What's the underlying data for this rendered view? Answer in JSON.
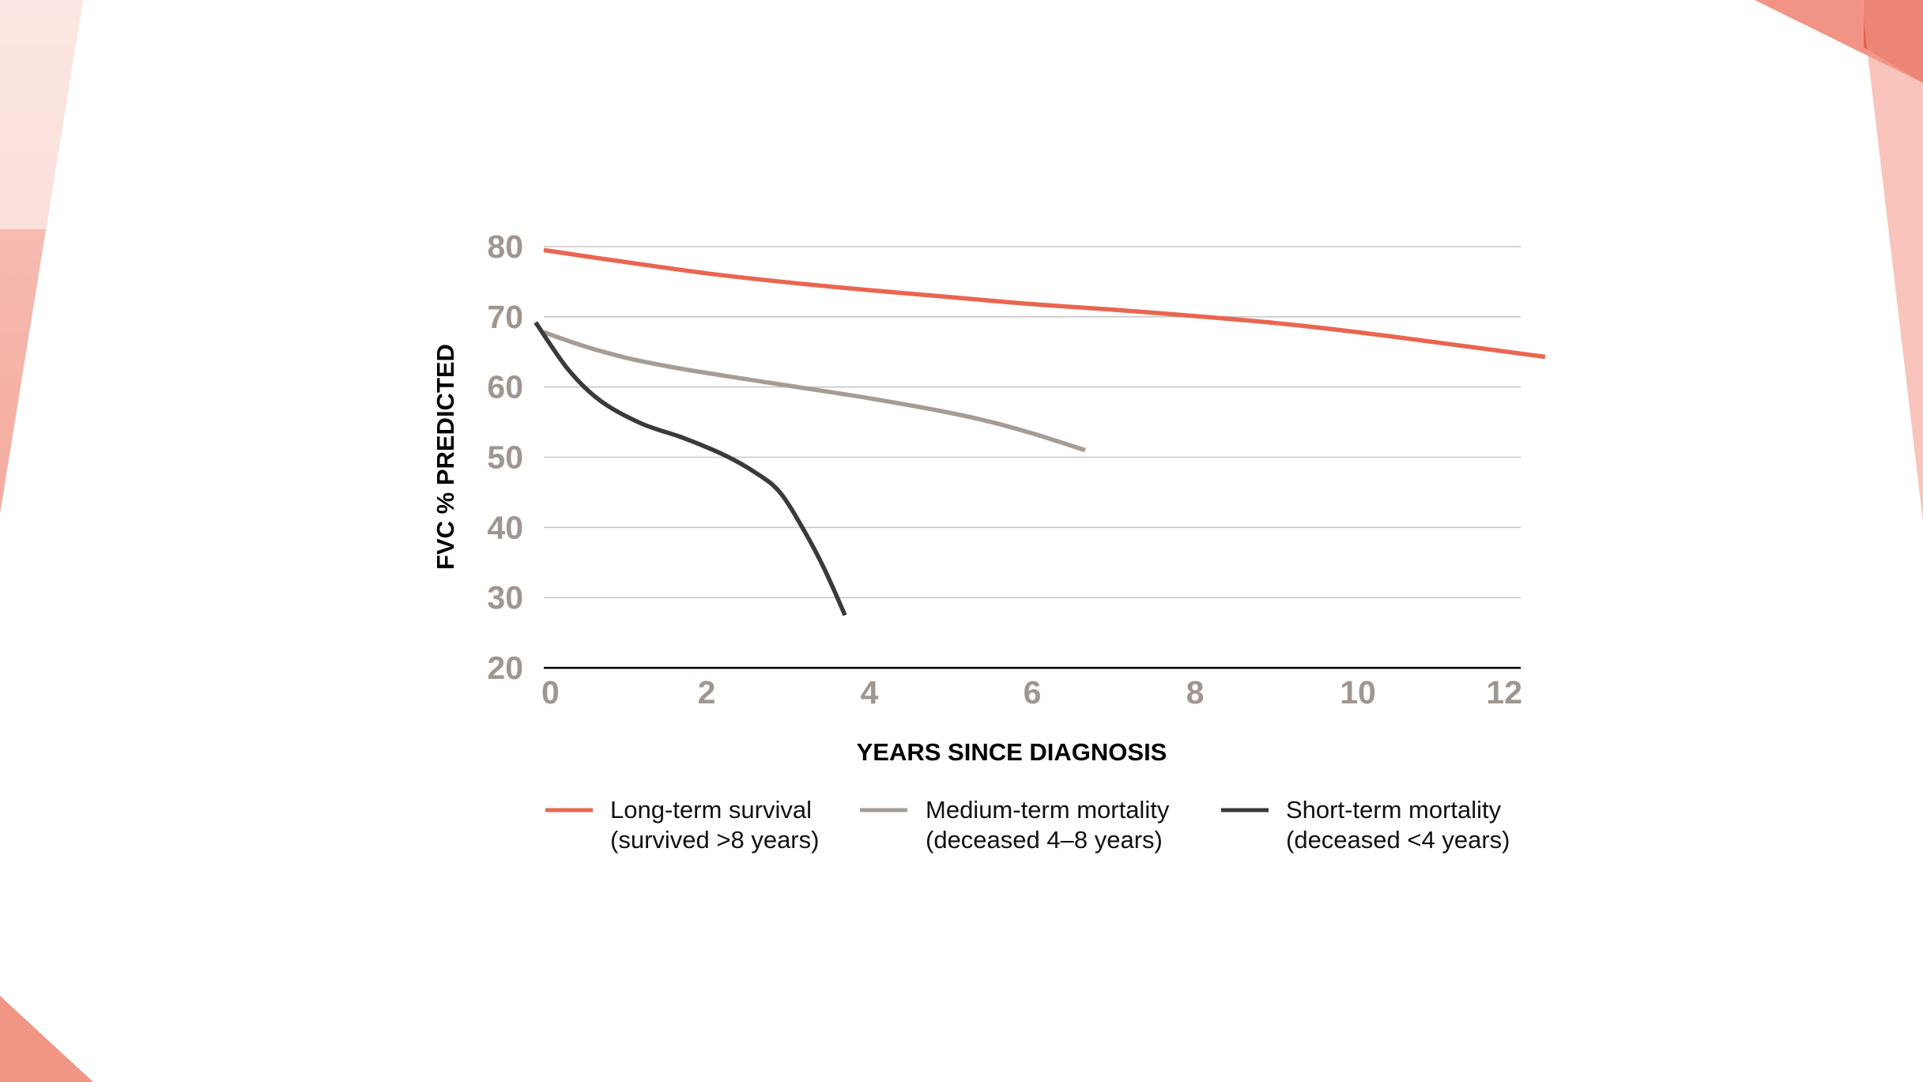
{
  "colors": {
    "long_term": "#ea6550",
    "medium_term": "#a69c96",
    "short_term": "#3a3a3c",
    "tick_label": "#a09690",
    "grid": "#c8c8c8",
    "accent_light": "#f6b3a6",
    "accent_dark": "#e0594a"
  },
  "chart_data": {
    "type": "line",
    "title": "",
    "xlabel": "YEARS SINCE DIAGNOSIS",
    "ylabel": "FVC % PREDICTED",
    "xlim": [
      0,
      12
    ],
    "ylim": [
      20,
      80
    ],
    "x_ticks": [
      0,
      2,
      4,
      6,
      8,
      10,
      12
    ],
    "y_ticks": [
      20,
      30,
      40,
      50,
      60,
      70,
      80
    ],
    "grid": true,
    "series": [
      {
        "name": "Long-term survival",
        "label_lines": [
          "Long-term survival",
          "(survived >8 years)"
        ],
        "color_key": "long_term",
        "x": [
          0,
          1,
          2,
          3,
          4,
          5,
          6,
          7,
          8,
          9,
          10,
          11,
          12.3
        ],
        "y": [
          79.5,
          77.8,
          76.2,
          74.9,
          73.8,
          72.8,
          71.8,
          71.0,
          70.1,
          69.1,
          67.8,
          66.3,
          64.3
        ]
      },
      {
        "name": "Medium-term mortality",
        "label_lines": [
          "Medium-term mortality",
          "(deceased 4–8 years)"
        ],
        "color_key": "medium_term",
        "x": [
          0,
          0.5,
          1,
          1.5,
          2,
          3,
          4,
          5,
          5.5,
          6,
          6.65
        ],
        "y": [
          67.8,
          65.8,
          64.2,
          63.0,
          62.0,
          60.2,
          58.4,
          56.3,
          55.0,
          53.4,
          51.0
        ]
      },
      {
        "name": "Short-term mortality",
        "label_lines": [
          "Short-term mortality",
          "(deceased <4 years)"
        ],
        "color_key": "short_term",
        "x": [
          -0.1,
          0.3,
          0.7,
          1.2,
          1.7,
          2.2,
          2.6,
          2.9,
          3.2,
          3.45,
          3.7
        ],
        "y": [
          69.2,
          62.5,
          58.0,
          54.8,
          52.8,
          50.4,
          47.8,
          45.0,
          39.5,
          34.0,
          27.5
        ]
      }
    ]
  }
}
